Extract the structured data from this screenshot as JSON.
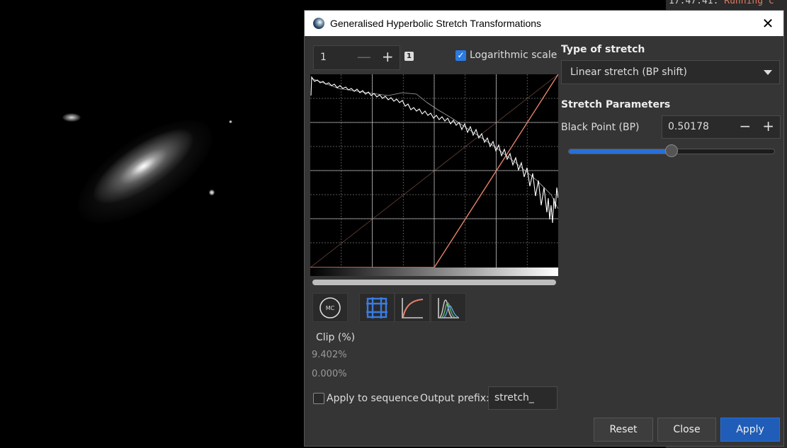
{
  "terminal": {
    "timestamp": "17:47:41:",
    "status": "Running c"
  },
  "dialog": {
    "title": "Generalised Hyperbolic Stretch Transformations",
    "zoom": {
      "value": "1",
      "badge": "1",
      "minus": "—",
      "plus": "+"
    },
    "log_scale": {
      "checked": true,
      "label": "Logarithmic scale"
    },
    "clip": {
      "label": "Clip (%)",
      "low": "9.402%",
      "high": "0.000%"
    },
    "apply_to_sequence": {
      "checked": false,
      "label": "Apply to sequence"
    },
    "output_prefix": {
      "label": "Output prefix:",
      "value": "stretch_"
    },
    "type_of_stretch": {
      "label": "Type of stretch",
      "selected": "Linear stretch (BP shift)"
    },
    "stretch_parameters": {
      "label": "Stretch Parameters",
      "black_point": {
        "label": "Black Point (BP)",
        "value": "0.50178",
        "minus": "−",
        "plus": "+",
        "slider_fraction": 0.50178
      }
    },
    "tool_buttons": [
      "mc-icon",
      "grid-icon",
      "curve-icon",
      "histogram-icon"
    ],
    "mc_text": "MC",
    "buttons": {
      "reset": "Reset",
      "close": "Close",
      "apply": "Apply"
    },
    "colors": {
      "accent": "#2a7ae2",
      "curve": "#e8836a",
      "apply": "#1f5db8"
    }
  }
}
